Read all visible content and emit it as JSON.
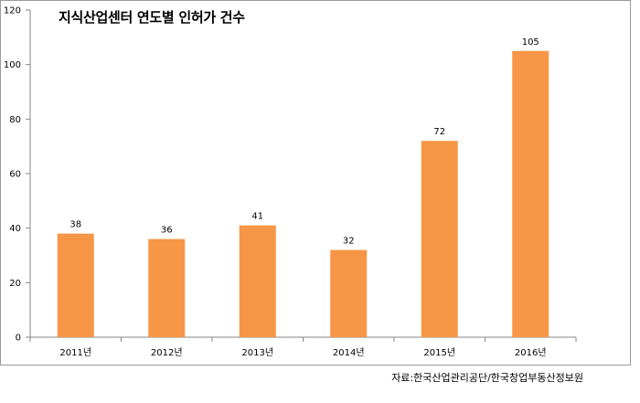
{
  "chart_data": {
    "type": "bar",
    "title": "지식산업센터 연도별 인허가 건수",
    "categories": [
      "2011년",
      "2012년",
      "2013년",
      "2014년",
      "2015년",
      "2016년"
    ],
    "values": [
      38,
      36,
      41,
      32,
      72,
      105
    ],
    "ylim": [
      0,
      120
    ],
    "yticks": [
      0,
      20,
      40,
      60,
      80,
      100,
      120
    ],
    "xlabel": "",
    "ylabel": "",
    "bar_color": "#f79646",
    "grid": false,
    "legend": "none"
  },
  "source_note": "자료:한국산업관리공단/한국창업부동산정보원"
}
